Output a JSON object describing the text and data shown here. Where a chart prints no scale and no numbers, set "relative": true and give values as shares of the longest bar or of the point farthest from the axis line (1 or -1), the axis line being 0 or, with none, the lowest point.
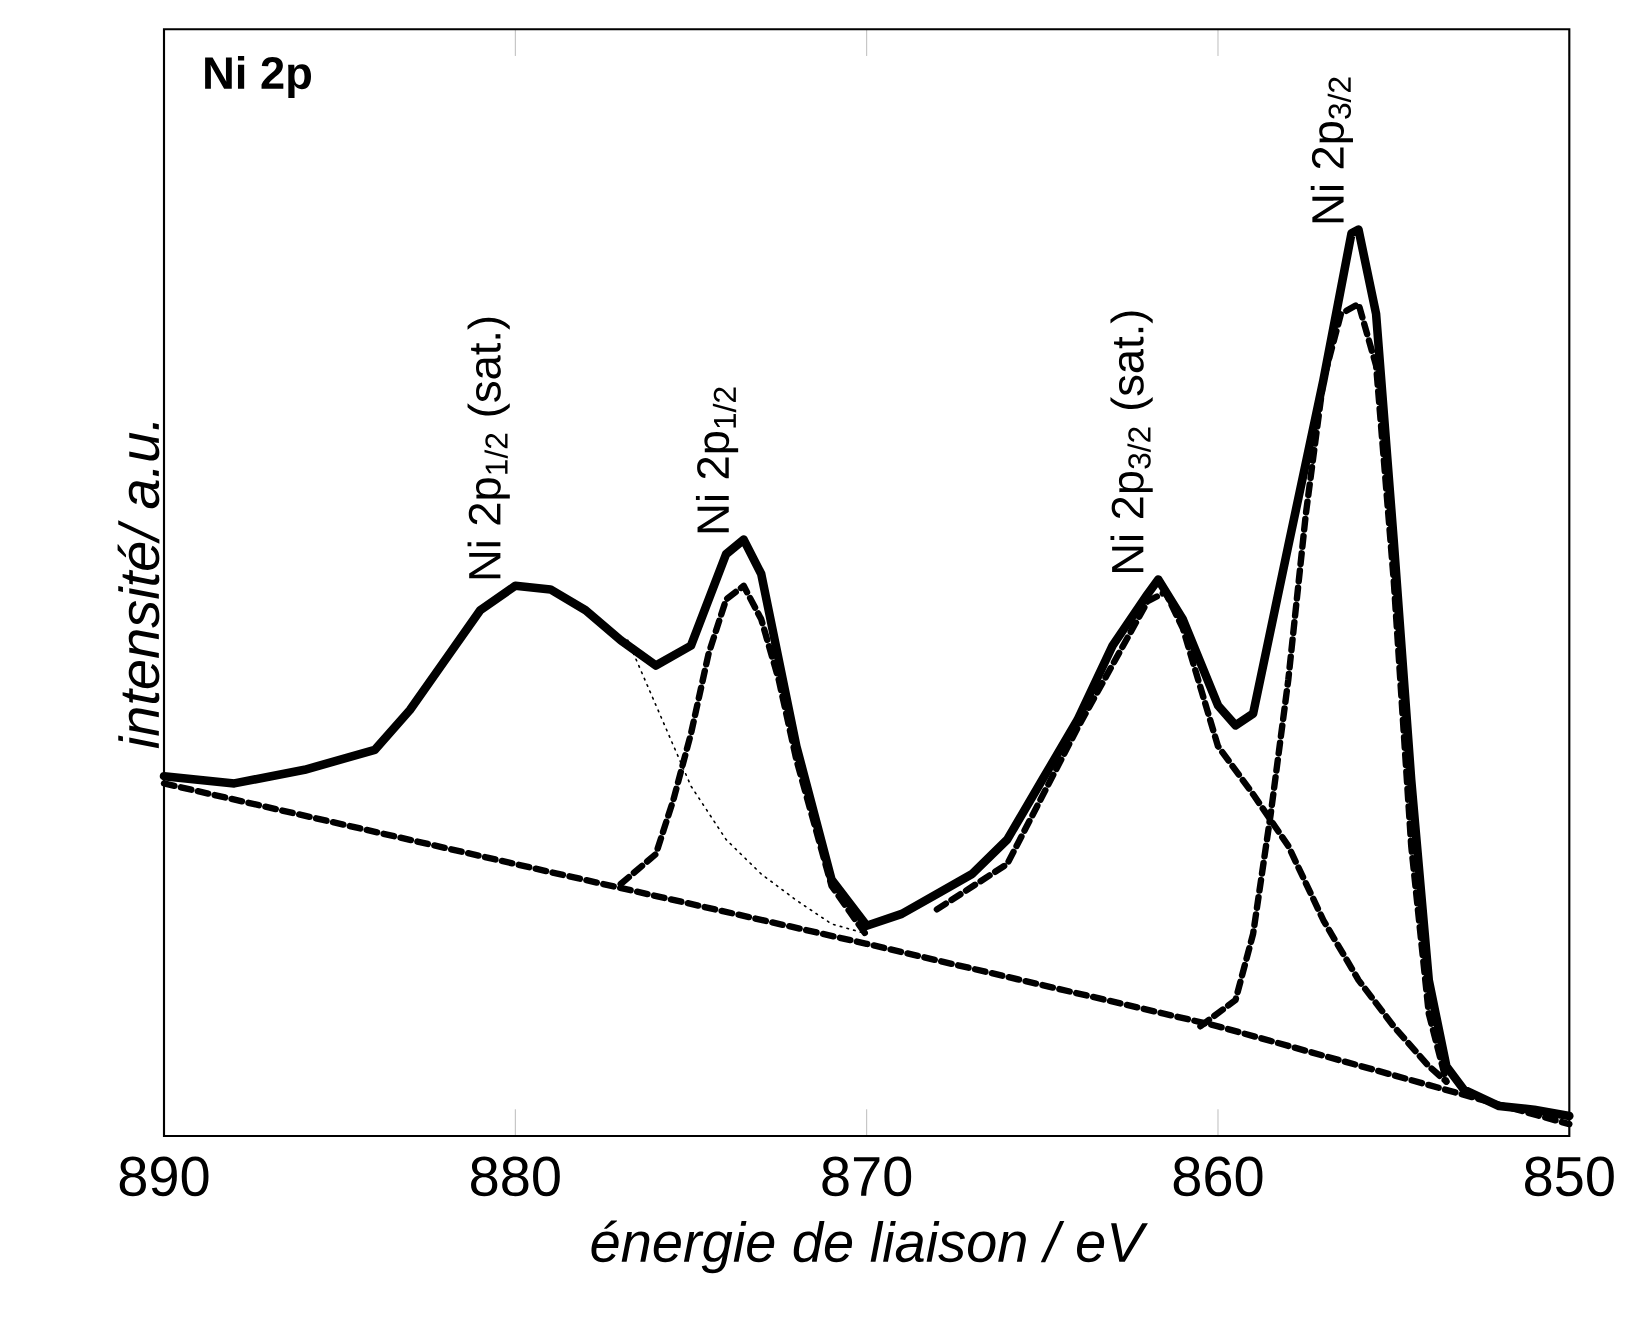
{
  "chart_data": {
    "type": "line",
    "title": "Ni 2p",
    "xlabel": "énergie de liaison / eV",
    "ylabel": "intensité/ a.u.",
    "relative": true,
    "xlim": [
      890,
      850
    ],
    "xticks": [
      890,
      880,
      870,
      860,
      850
    ],
    "marker": "none",
    "grid": false,
    "series": [
      {
        "color": "#000000",
        "line_style": "solid",
        "x": [
          890,
          888,
          886,
          884,
          883,
          882,
          881,
          880,
          879,
          878,
          877,
          876,
          875,
          874,
          873.5,
          873,
          872,
          871,
          870,
          869,
          868,
          867,
          866,
          865,
          864,
          863,
          862,
          861.7,
          861,
          860,
          859.5,
          859,
          858,
          857,
          856.2,
          856,
          855.5,
          855,
          854.5,
          854,
          853.5,
          853,
          852,
          851,
          850
        ],
        "values": [
          0.397,
          0.389,
          0.404,
          0.426,
          0.47,
          0.525,
          0.58,
          0.607,
          0.603,
          0.58,
          0.547,
          0.519,
          0.541,
          0.642,
          0.658,
          0.62,
          0.43,
          0.283,
          0.232,
          0.245,
          0.267,
          0.289,
          0.327,
          0.393,
          0.459,
          0.541,
          0.598,
          0.614,
          0.57,
          0.475,
          0.453,
          0.466,
          0.651,
          0.834,
          0.996,
          1.0,
          0.907,
          0.658,
          0.393,
          0.172,
          0.077,
          0.051,
          0.033,
          0.029,
          0.022
        ]
      },
      {
        "color": "#000000",
        "line_style": "dashed",
        "x": [
          890,
          880,
          870,
          860,
          850
        ],
        "values": [
          0.389,
          0.3,
          0.212,
          0.121,
          0.013
        ]
      },
      {
        "color": "#000000",
        "line_style": "dashed",
        "x": [
          877,
          876,
          875.5,
          875,
          874.5,
          874,
          873.5,
          873,
          872.5,
          872,
          871,
          870
        ],
        "values": [
          0.278,
          0.311,
          0.371,
          0.444,
          0.532,
          0.592,
          0.607,
          0.57,
          0.503,
          0.415,
          0.276,
          0.221
        ]
      },
      {
        "color": "#000000",
        "line_style": "dotted",
        "x": [
          876.8,
          875,
          874,
          873,
          872,
          871,
          870
        ],
        "values": [
          0.547,
          0.386,
          0.327,
          0.289,
          0.26,
          0.234,
          0.223
        ]
      },
      {
        "color": "#000000",
        "line_style": "dashed",
        "x": [
          868,
          866,
          864,
          862,
          861.5,
          861,
          860,
          859,
          858,
          857,
          856,
          855,
          854,
          853.5
        ],
        "values": [
          0.25,
          0.3,
          0.45,
          0.59,
          0.6,
          0.56,
          0.43,
          0.377,
          0.32,
          0.238,
          0.172,
          0.121,
          0.077,
          0.06
        ]
      },
      {
        "color": "#000000",
        "line_style": "dashed",
        "x": [
          860.5,
          859.5,
          859,
          858.5,
          858,
          857.5,
          857,
          856.5,
          856,
          855.5,
          855,
          854.5,
          854,
          853.5
        ],
        "values": [
          0.121,
          0.15,
          0.223,
          0.355,
          0.503,
          0.686,
          0.834,
          0.907,
          0.918,
          0.85,
          0.614,
          0.32,
          0.135,
          0.06
        ]
      }
    ],
    "annotations": [
      {
        "text": "Ni 2p$_{1/2}$ (sat.)",
        "x": 880,
        "y": 0.607
      },
      {
        "text": "Ni 2p$_{1/2}$",
        "x": 873.5,
        "y": 0.658
      },
      {
        "text": "Ni 2p$_{3/2}$ (sat.)",
        "x": 861.7,
        "y": 0.614
      },
      {
        "text": "Ni 2p$_{3/2}$",
        "x": 856,
        "y": 1.0
      }
    ]
  }
}
